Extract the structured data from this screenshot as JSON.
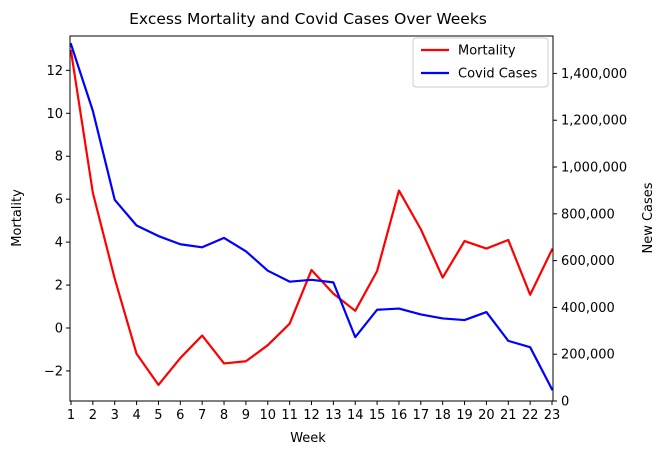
{
  "chart_data": {
    "type": "line",
    "title": "Excess Mortality and Covid Cases Over Weeks",
    "xlabel": "Week",
    "ylabel_left": "Mortality",
    "ylabel_right": "New Cases",
    "categories": [
      "1",
      "2",
      "3",
      "4",
      "5",
      "6",
      "7",
      "8",
      "9",
      "10",
      "11",
      "12",
      "13",
      "14",
      "15",
      "16",
      "17",
      "18",
      "19",
      "20",
      "21",
      "22",
      "23"
    ],
    "left_axis": {
      "ylim": [
        -3.4,
        13.6
      ],
      "ticks": [
        -2,
        0,
        2,
        4,
        6,
        8,
        10,
        12
      ],
      "tick_labels": [
        "−2",
        "0",
        "2",
        "4",
        "6",
        "8",
        "10",
        "12"
      ]
    },
    "right_axis": {
      "ylim": [
        0,
        1560000
      ],
      "ticks": [
        0,
        200000,
        400000,
        600000,
        800000,
        1000000,
        1200000,
        1400000
      ],
      "tick_labels": [
        "0",
        "200,000",
        "400,000",
        "600,000",
        "800,000",
        "1,000,000",
        "1,200,000",
        "1,400,000"
      ]
    },
    "series": [
      {
        "name": "Mortality",
        "axis": "left",
        "color": "#ff0000",
        "values": [
          12.9,
          6.3,
          2.3,
          -1.2,
          -2.65,
          -1.4,
          -0.35,
          -1.65,
          -1.55,
          -0.8,
          0.2,
          2.7,
          1.6,
          0.8,
          2.65,
          6.4,
          4.6,
          2.35,
          4.05,
          3.7,
          4.1,
          1.55,
          3.65
        ]
      },
      {
        "name": "Covid Cases",
        "axis": "right",
        "color": "#0000ff",
        "values": [
          1525000,
          1240000,
          860000,
          750000,
          705000,
          670000,
          657000,
          697000,
          640000,
          557000,
          510000,
          518000,
          507000,
          273000,
          390000,
          395000,
          370000,
          353000,
          346000,
          380000,
          257000,
          230000,
          50000
        ]
      }
    ],
    "legend_position": "top-right",
    "grid": false
  }
}
